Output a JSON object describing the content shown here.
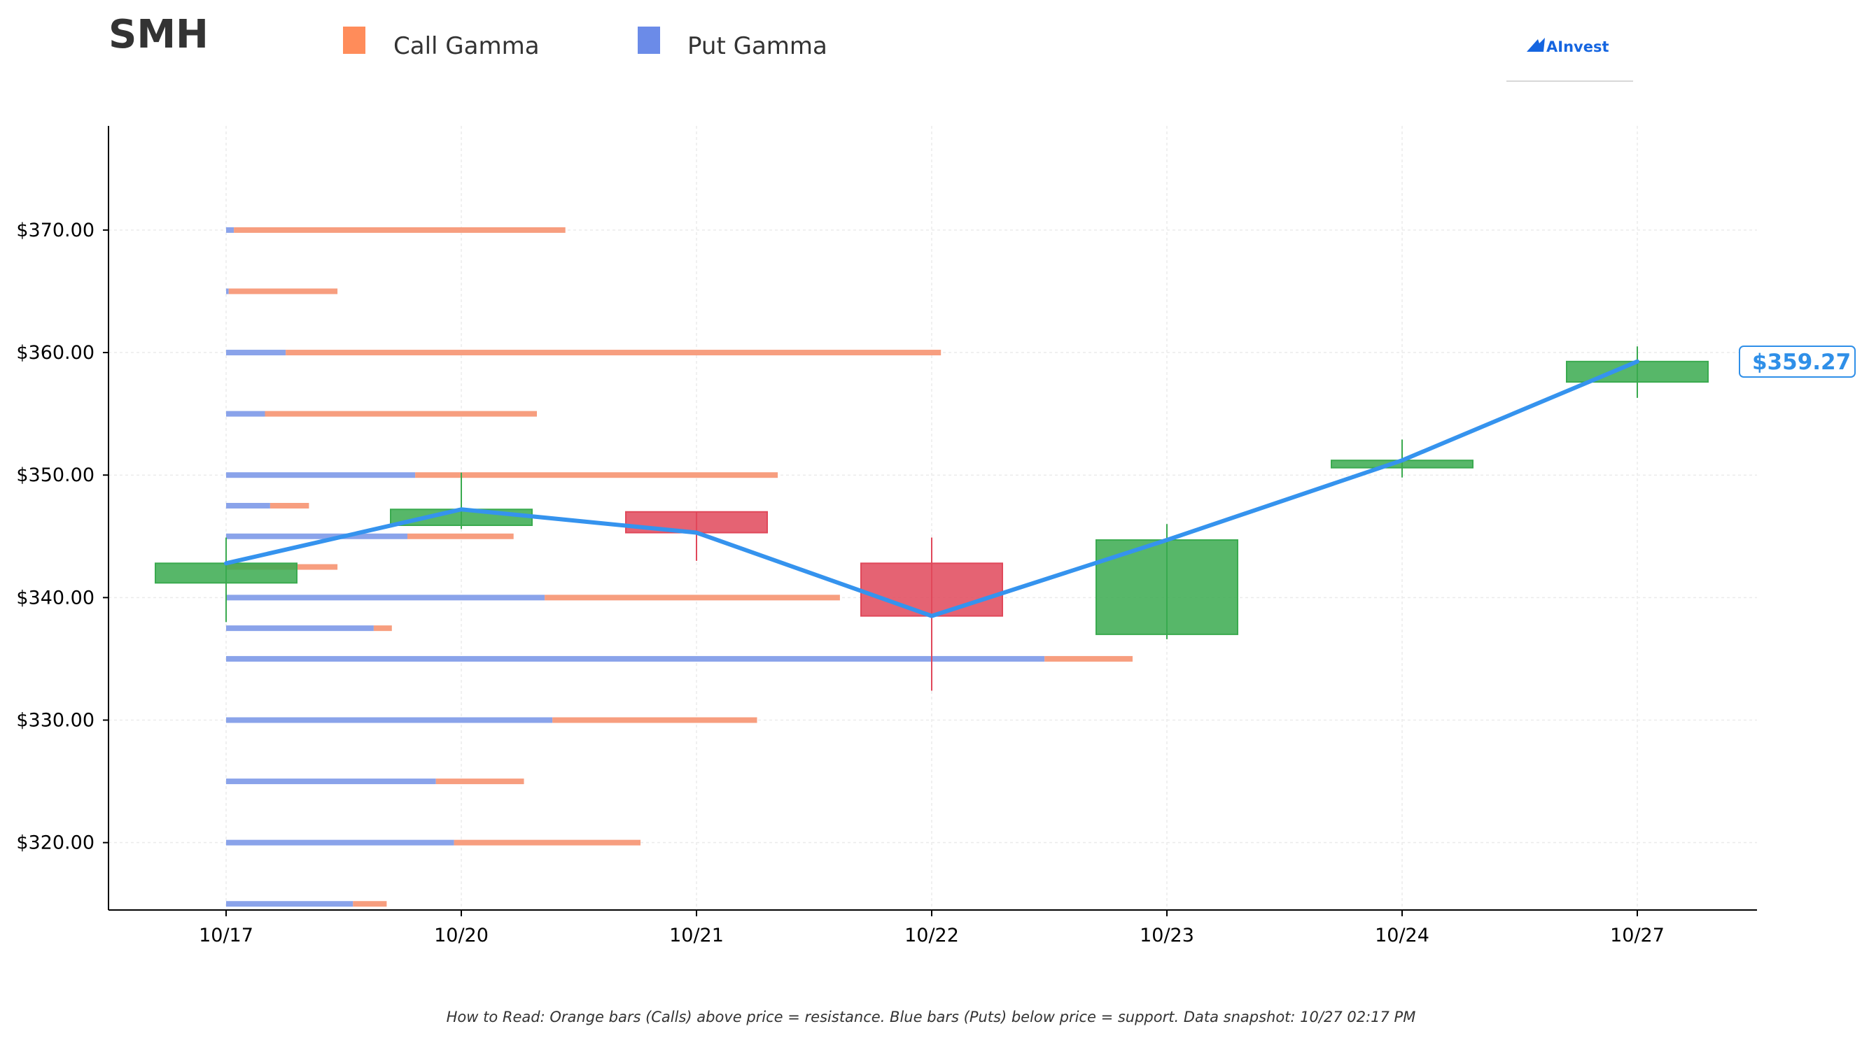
{
  "ticker": "SMH",
  "legend": {
    "call_label": "Call Gamma",
    "put_label": "Put Gamma",
    "call_color": "#ff8c5a",
    "put_color": "#6b8be8"
  },
  "logo": {
    "text": "AInvest",
    "color": "#1565e0"
  },
  "footer": "How to Read: Orange bars (Calls) above price = resistance. Blue bars (Puts) below price = support. Data snapshot: 10/27 02:17 PM",
  "last_price_label": "$359.27",
  "chart_data": {
    "type": "candlestick",
    "x_categories": [
      "10/17",
      "10/20",
      "10/21",
      "10/22",
      "10/23",
      "10/24",
      "10/27"
    ],
    "y_ticks": [
      320,
      330,
      340,
      350,
      360,
      370
    ],
    "y_tick_labels": [
      "$320.00",
      "$330.00",
      "$340.00",
      "$350.00",
      "$360.00",
      "$370.00"
    ],
    "ylim": [
      314.5,
      378.5
    ],
    "grid": true,
    "candles": [
      {
        "date": "10/17",
        "open": 341.2,
        "high": 344.9,
        "low": 338.0,
        "close": 342.8
      },
      {
        "date": "10/20",
        "open": 345.9,
        "high": 350.2,
        "low": 345.6,
        "close": 347.2
      },
      {
        "date": "10/21",
        "open": 347.0,
        "high": 347.0,
        "low": 343.0,
        "close": 345.3
      },
      {
        "date": "10/22",
        "open": 342.8,
        "high": 344.9,
        "low": 332.4,
        "close": 338.5
      },
      {
        "date": "10/23",
        "open": 337.0,
        "high": 346.0,
        "low": 336.6,
        "close": 344.7
      },
      {
        "date": "10/24",
        "open": 350.6,
        "high": 352.9,
        "low": 349.8,
        "close": 351.2
      },
      {
        "date": "10/27",
        "open": 357.6,
        "high": 360.5,
        "low": 356.3,
        "close": 359.27
      }
    ],
    "close_line": [
      342.8,
      347.2,
      345.3,
      338.5,
      344.7,
      351.2,
      359.27
    ],
    "gamma_levels": [
      {
        "strike": 370.0,
        "put": 0.03,
        "call": 1.28
      },
      {
        "strike": 365.0,
        "put": 0.01,
        "call": 0.42
      },
      {
        "strike": 360.0,
        "put": 0.23,
        "call": 2.53
      },
      {
        "strike": 355.0,
        "put": 0.15,
        "call": 1.05
      },
      {
        "strike": 350.0,
        "put": 0.73,
        "call": 1.4
      },
      {
        "strike": 347.5,
        "put": 0.17,
        "call": 0.15
      },
      {
        "strike": 345.0,
        "put": 0.7,
        "call": 0.41
      },
      {
        "strike": 342.5,
        "put": 0.0,
        "call": 0.43
      },
      {
        "strike": 340.0,
        "put": 1.23,
        "call": 1.14
      },
      {
        "strike": 337.5,
        "put": 0.57,
        "call": 0.07
      },
      {
        "strike": 335.0,
        "put": 3.16,
        "call": 0.34
      },
      {
        "strike": 330.0,
        "put": 1.26,
        "call": 0.79
      },
      {
        "strike": 325.0,
        "put": 0.81,
        "call": 0.34
      },
      {
        "strike": 320.0,
        "put": 0.88,
        "call": 0.72
      },
      {
        "strike": 315.0,
        "put": 0.49,
        "call": 0.13
      }
    ],
    "colors": {
      "up": "#3aaa4f",
      "down": "#e0485a",
      "close_line": "#3593ee",
      "call": "#f79e7f",
      "put": "#8aa3ea"
    }
  }
}
